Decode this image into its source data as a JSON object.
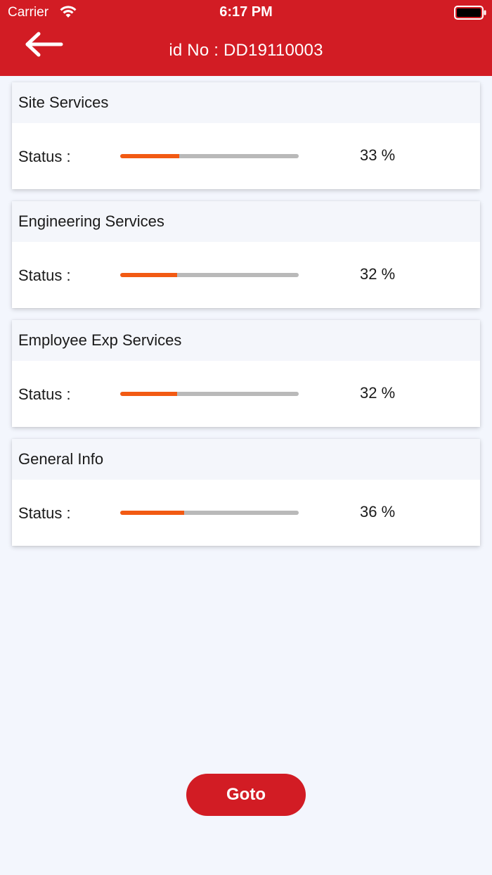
{
  "status_bar": {
    "carrier": "Carrier",
    "time": "6:17 PM"
  },
  "header": {
    "title": "id No : DD19110003",
    "back_icon": "arrow-left-icon"
  },
  "sections": [
    {
      "title": "Site Services",
      "status_label": "Status :",
      "progress": 0.33,
      "percent_text": "33 %"
    },
    {
      "title": "Engineering Services",
      "status_label": "Status :",
      "progress": 0.32,
      "percent_text": "32 %"
    },
    {
      "title": "Employee Exp Services",
      "status_label": "Status :",
      "progress": 0.32,
      "percent_text": "32 %"
    },
    {
      "title": "General Info",
      "status_label": "Status :",
      "progress": 0.36,
      "percent_text": "36 %"
    }
  ],
  "goto_button": {
    "label": "Goto"
  },
  "colors": {
    "brand": "#d21c24",
    "progress_fill": "#f25a13",
    "progress_track": "#b9b9b9",
    "background": "#f3f6fd"
  }
}
